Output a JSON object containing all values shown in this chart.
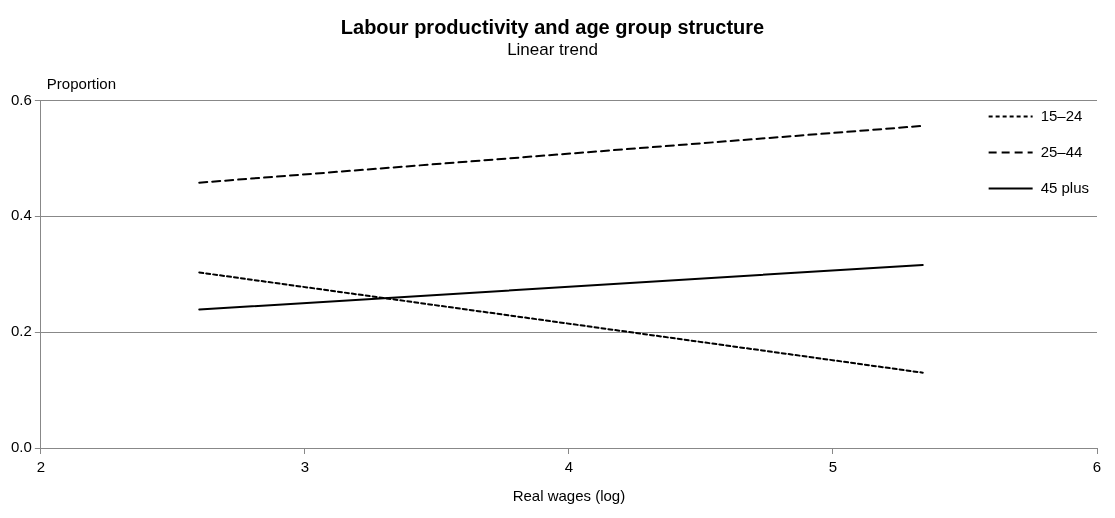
{
  "chart_data": {
    "type": "line",
    "title": "Labour productivity and age group structure",
    "subtitle": "Linear trend",
    "xlabel": "Real wages (log)",
    "ylabel": "Proportion",
    "x": [
      2.6,
      5.34
    ],
    "series": [
      {
        "name": "15–24",
        "color": "#000000",
        "line_style": "dotted",
        "values": [
          0.303,
          0.13
        ]
      },
      {
        "name": "25–44",
        "color": "#000000",
        "line_style": "dashed",
        "values": [
          0.458,
          0.556
        ]
      },
      {
        "name": "45 plus",
        "color": "#000000",
        "line_style": "solid",
        "values": [
          0.239,
          0.316
        ]
      }
    ],
    "xlim": [
      2,
      6
    ],
    "xticks": [
      2,
      3,
      4,
      5,
      6
    ],
    "ylim": [
      0,
      0.6
    ],
    "yticks": [
      {
        "value": 0,
        "label": "0.0"
      },
      {
        "value": 0.2,
        "label": "0.2"
      },
      {
        "value": 0.4,
        "label": "0.4"
      },
      {
        "value": 0.6,
        "label": "0.6"
      }
    ],
    "grid": "y",
    "legend": "top right",
    "marker": "none"
  }
}
